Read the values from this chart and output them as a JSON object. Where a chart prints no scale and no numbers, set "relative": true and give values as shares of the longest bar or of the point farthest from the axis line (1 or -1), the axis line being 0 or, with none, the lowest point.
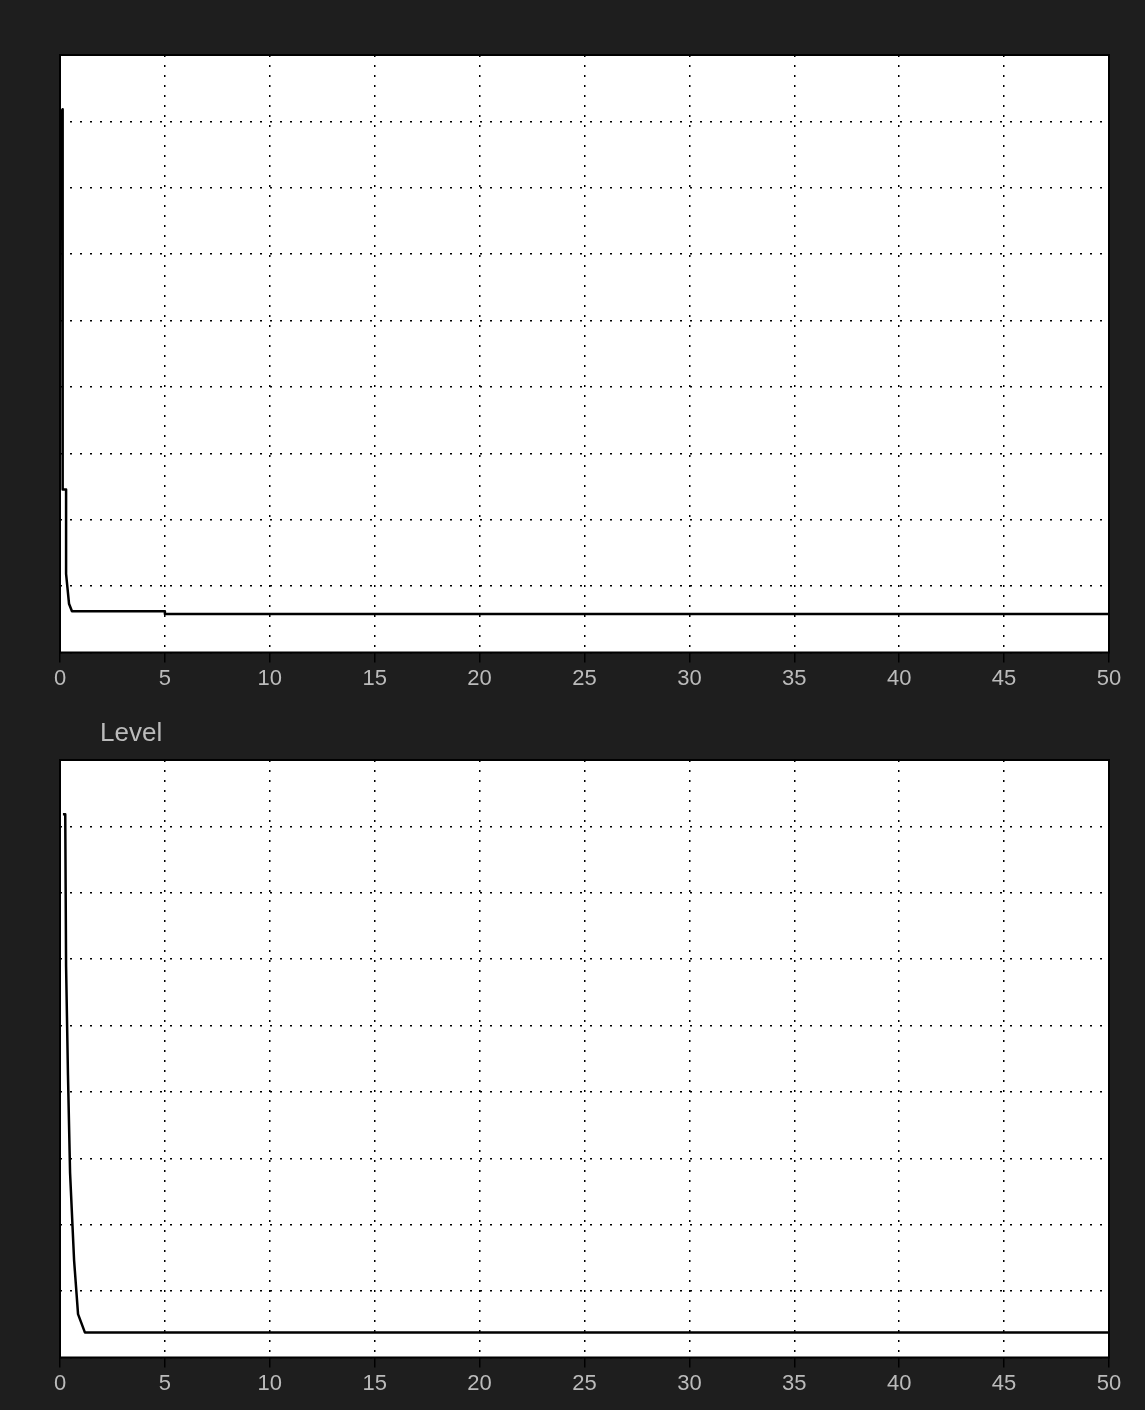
{
  "chart_data": [
    {
      "type": "line",
      "relative": true,
      "grid": true,
      "xlim": [
        0,
        50
      ],
      "xticks": [
        0,
        5,
        10,
        15,
        20,
        25,
        30,
        35,
        40,
        45,
        50
      ],
      "series": [
        {
          "color": "#000000",
          "x": [
            0.1,
            0.1,
            0.14,
            0.14,
            0.29,
            0.29,
            0.43,
            0.57,
            5,
            5,
            50
          ],
          "values": [
            1,
            0.3,
            0.3,
            0.3,
            0.3,
            0.145,
            0.09,
            0.076,
            0.076,
            0.071,
            0.071
          ]
        }
      ]
    },
    {
      "type": "line",
      "title": "Level",
      "relative": true,
      "grid": true,
      "xlim": [
        0,
        50
      ],
      "xticks": [
        0,
        5,
        10,
        15,
        20,
        25,
        30,
        35,
        40,
        45,
        50
      ],
      "series": [
        {
          "color": "#000000",
          "x": [
            0.14,
            0.25,
            0.29,
            0.38,
            0.48,
            0.67,
            0.86,
            1.19,
            50
          ],
          "values": [
            1,
            1,
            0.72,
            0.52,
            0.34,
            0.18,
            0.08,
            0.046,
            0.046
          ]
        }
      ]
    }
  ]
}
